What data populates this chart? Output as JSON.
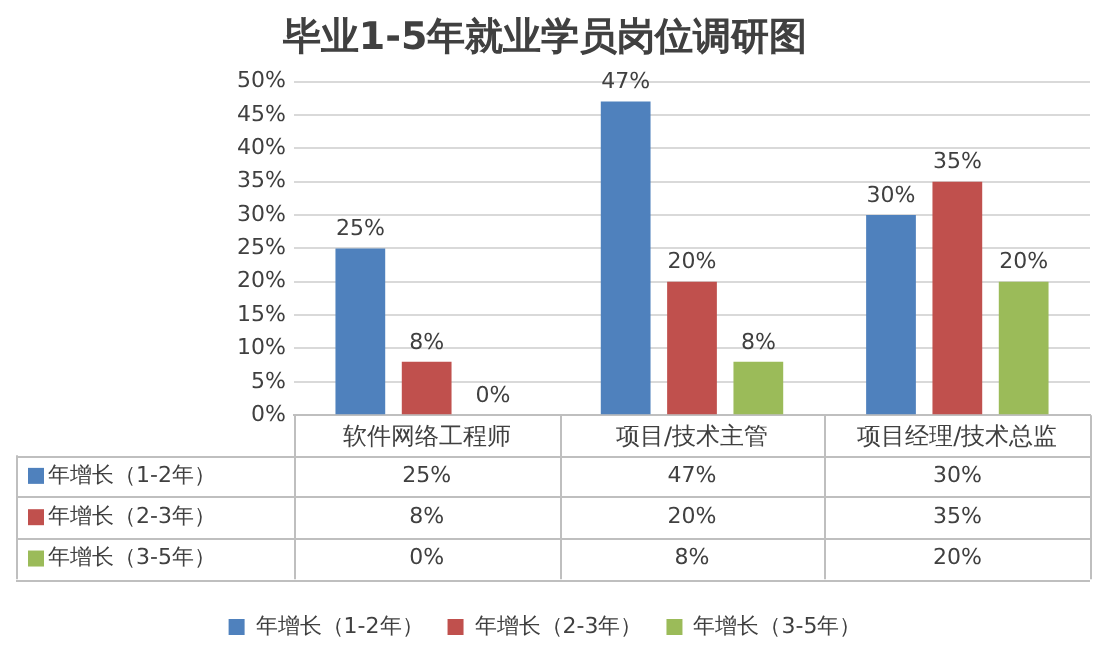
{
  "chart_data": {
    "type": "bar",
    "title": "毕业1-5年就业学员岗位调研图",
    "categories": [
      "软件网络工程师",
      "项目/技术主管",
      "项目经理/技术总监"
    ],
    "series": [
      {
        "name": "年增长（1-2年）",
        "color": "#4f81bd",
        "values": [
          25,
          47,
          30
        ],
        "value_labels": [
          "25%",
          "47%",
          "30%"
        ]
      },
      {
        "name": "年增长（2-3年）",
        "color": "#c0504d",
        "values": [
          8,
          20,
          35
        ],
        "value_labels": [
          "8%",
          "20%",
          "35%"
        ]
      },
      {
        "name": "年增长（3-5年）",
        "color": "#9bbb59",
        "values": [
          0,
          8,
          20
        ],
        "value_labels": [
          "0%",
          "8%",
          "20%"
        ]
      }
    ],
    "ylim": [
      0,
      50
    ],
    "yticks": [
      {
        "value": 0,
        "label": "0%"
      },
      {
        "value": 5,
        "label": "5%"
      },
      {
        "value": 10,
        "label": "10%"
      },
      {
        "value": 15,
        "label": "15%"
      },
      {
        "value": 20,
        "label": "20%"
      },
      {
        "value": 25,
        "label": "25%"
      },
      {
        "value": 30,
        "label": "30%"
      },
      {
        "value": 35,
        "label": "35%"
      },
      {
        "value": 40,
        "label": "40%"
      },
      {
        "value": 45,
        "label": "45%"
      },
      {
        "value": 50,
        "label": "50%"
      }
    ],
    "grid": "y",
    "legend": "bottom"
  }
}
